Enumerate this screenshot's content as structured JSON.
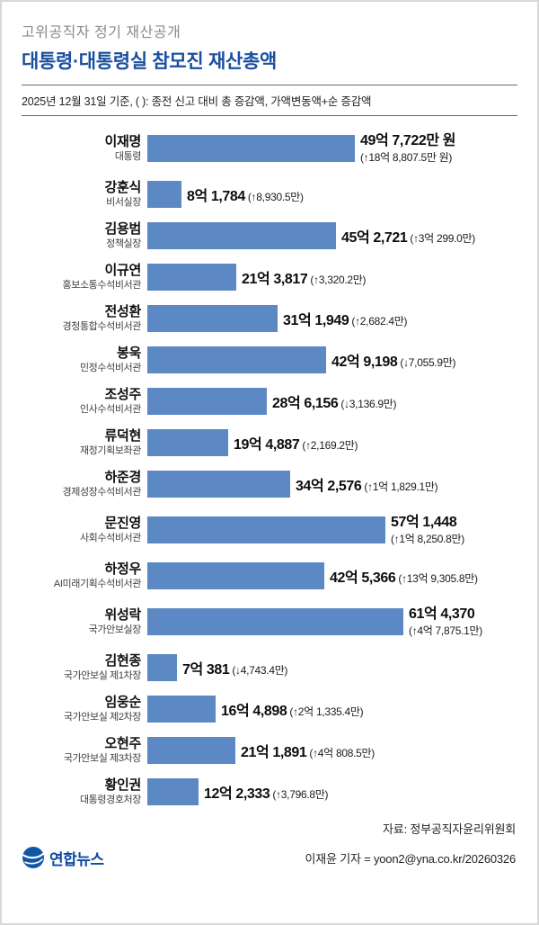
{
  "header": {
    "kicker": "고위공직자 정기 재산공개",
    "title": "대통령·대통령실 참모진 재산총액",
    "note": "2025년 12월 31일 기준, ( ): 종전 신고 대비 총 증감액, 가액변동액+순 증감액"
  },
  "chart_data": {
    "type": "bar",
    "orientation": "horizontal",
    "title": "대통령·대통령실 참모진 재산총액",
    "unit": "억 원",
    "bar_color": "#5c88c4",
    "x_max_uk": 61.437,
    "rows": [
      {
        "name": "이재명",
        "title": "대통령",
        "value": 49.7722,
        "value_label": "49억 7,722만 원",
        "change_label": "(↑18억 8,807.5만 원)",
        "two_line": true
      },
      {
        "name": "강훈식",
        "title": "비서실장",
        "value": 8.1784,
        "value_label": "8억 1,784",
        "change_label": "(↑8,930.5만)",
        "two_line": false
      },
      {
        "name": "김용범",
        "title": "정책실장",
        "value": 45.2721,
        "value_label": "45억 2,721",
        "change_label": "(↑3억 299.0만)",
        "two_line": false
      },
      {
        "name": "이규연",
        "title": "홍보소통수석비서관",
        "value": 21.3817,
        "value_label": "21억 3,817",
        "change_label": "(↑3,320.2만)",
        "two_line": false
      },
      {
        "name": "전성환",
        "title": "경청통합수석비서관",
        "value": 31.1949,
        "value_label": "31억 1,949",
        "change_label": "(↑2,682.4만)",
        "two_line": false
      },
      {
        "name": "봉욱",
        "title": "민정수석비서관",
        "value": 42.9198,
        "value_label": "42억 9,198",
        "change_label": "(↓7,055.9만)",
        "two_line": false
      },
      {
        "name": "조성주",
        "title": "인사수석비서관",
        "value": 28.6156,
        "value_label": "28억 6,156",
        "change_label": "(↓3,136.9만)",
        "two_line": false
      },
      {
        "name": "류덕현",
        "title": "재정기획보좌관",
        "value": 19.4887,
        "value_label": "19억 4,887",
        "change_label": "(↑2,169.2만)",
        "two_line": false
      },
      {
        "name": "하준경",
        "title": "경제성장수석비서관",
        "value": 34.2576,
        "value_label": "34억 2,576",
        "change_label": "(↑1억 1,829.1만)",
        "two_line": false
      },
      {
        "name": "문진영",
        "title": "사회수석비서관",
        "value": 57.1448,
        "value_label": "57억 1,448",
        "change_label": "(↑1억 8,250.8만)",
        "two_line": true
      },
      {
        "name": "하정우",
        "title": "AI미래기획수석비서관",
        "value": 42.5366,
        "value_label": "42억 5,366",
        "change_label": "(↑13억 9,305.8만)",
        "two_line": false
      },
      {
        "name": "위성락",
        "title": "국가안보실장",
        "value": 61.437,
        "value_label": "61억 4,370",
        "change_label": "(↑4억 7,875.1만)",
        "two_line": true
      },
      {
        "name": "김현종",
        "title": "국가안보실 제1차장",
        "value": 7.0381,
        "value_label": "7억 381",
        "change_label": "(↓4,743.4만)",
        "two_line": false
      },
      {
        "name": "임웅순",
        "title": "국가안보실 제2차장",
        "value": 16.4898,
        "value_label": "16억 4,898",
        "change_label": "(↑2억 1,335.4만)",
        "two_line": false
      },
      {
        "name": "오현주",
        "title": "국가안보실 제3차장",
        "value": 21.1891,
        "value_label": "21억 1,891",
        "change_label": "(↑4억 808.5만)",
        "two_line": false
      },
      {
        "name": "황인권",
        "title": "대통령경호처장",
        "value": 12.2333,
        "value_label": "12억 2,333",
        "change_label": "(↑3,796.8만)",
        "two_line": false
      }
    ]
  },
  "footer": {
    "source": "자료: 정부공직자윤리위원회",
    "credit": "이재윤 기자 = yoon2@yna.co.kr/20260326",
    "logo_text": "연합뉴스"
  }
}
